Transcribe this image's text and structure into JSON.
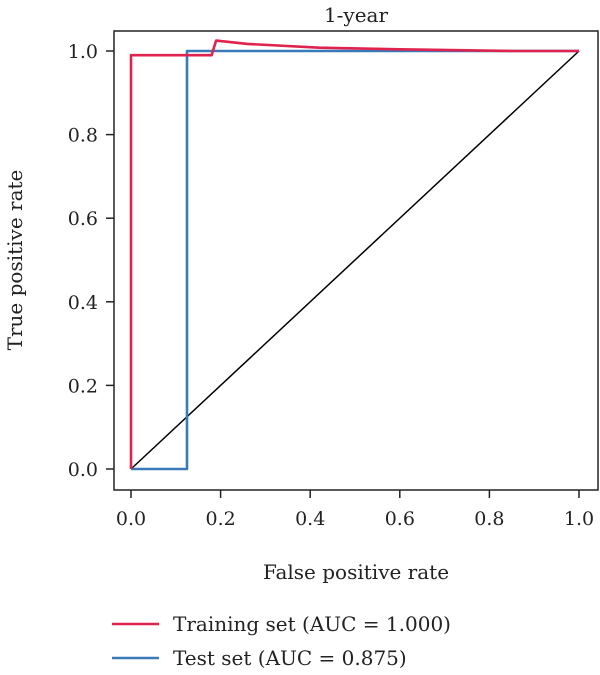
{
  "chart_data": {
    "type": "line",
    "title": "1-year",
    "xlabel": "False positive rate",
    "ylabel": "True positive rate",
    "xlim": [
      0,
      1
    ],
    "ylim": [
      0,
      1
    ],
    "x_ticks": [
      "0.0",
      "0.2",
      "0.4",
      "0.6",
      "0.8",
      "1.0"
    ],
    "y_ticks": [
      "0.0",
      "0.2",
      "0.4",
      "0.6",
      "0.8",
      "1.0"
    ],
    "grid": false,
    "legend_position": "bottom",
    "reference_line": {
      "x": [
        0,
        1
      ],
      "y": [
        0,
        1
      ],
      "color": "#000000"
    },
    "series": [
      {
        "name": "Training set (AUC = 1.000)",
        "color": "#e0224e",
        "x": [
          0.0,
          0.0,
          0.18,
          0.19,
          0.26,
          0.42,
          0.6,
          0.85,
          1.0
        ],
        "y": [
          0.0,
          0.99,
          0.99,
          1.025,
          1.017,
          1.008,
          1.004,
          1.0,
          1.0
        ]
      },
      {
        "name": "Test set (AUC = 0.875)",
        "color": "#3a7ab8",
        "x": [
          0.0,
          0.125,
          0.125,
          1.0
        ],
        "y": [
          0.0,
          0.0,
          1.0,
          1.0
        ]
      }
    ]
  }
}
